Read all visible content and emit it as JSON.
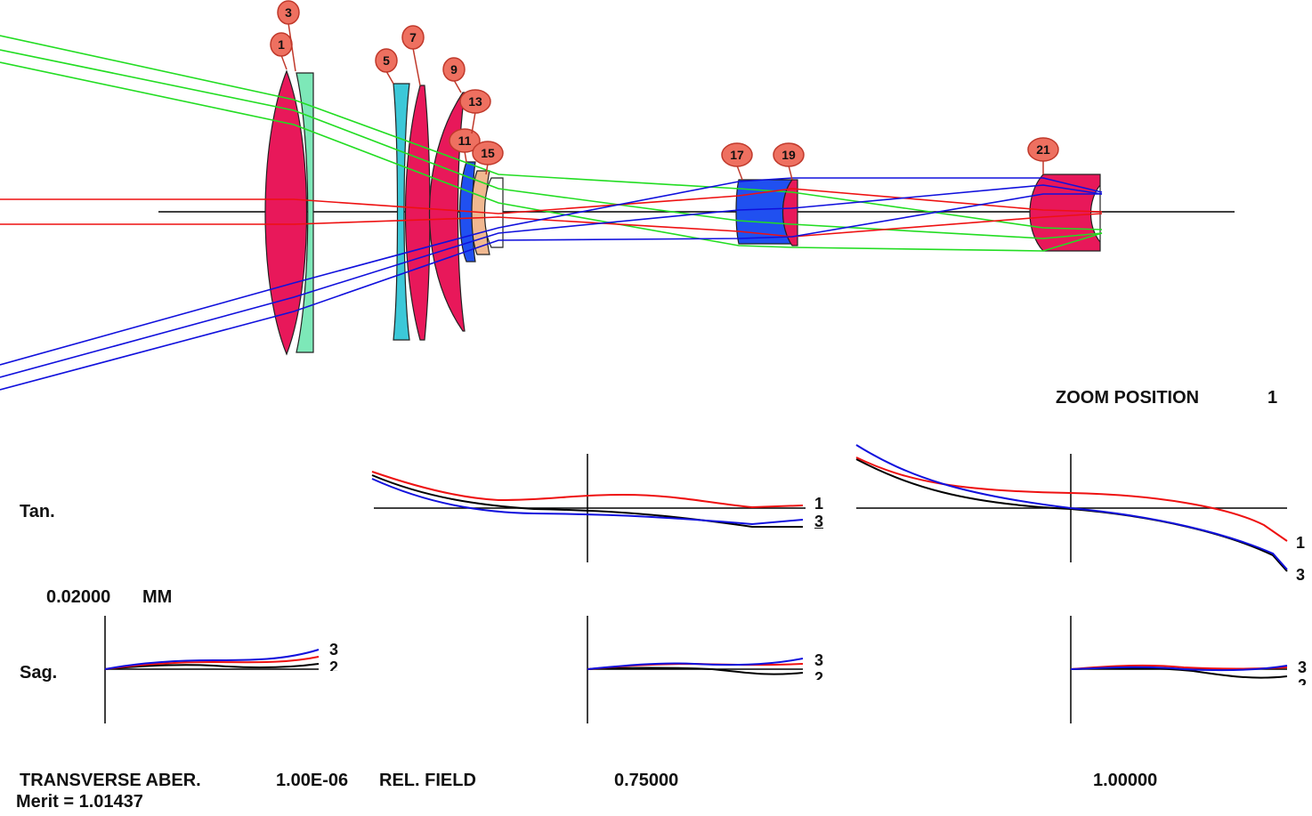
{
  "colors": {
    "lens_red": "#e8185a",
    "lens_mint": "#7de8b8",
    "lens_cyan": "#3cc8d8",
    "lens_blue": "#2050f0",
    "lens_orange": "#f0b890",
    "ray_red": "#ee1111",
    "ray_green": "#22dd22",
    "ray_blue": "#1010dd",
    "tag_fill": "#ee7060",
    "tag_stroke": "#c0392b",
    "black": "#000000"
  },
  "surface_tags": [
    "1",
    "3",
    "5",
    "7",
    "9",
    "11",
    "13",
    "15",
    "17",
    "19",
    "21"
  ],
  "header": {
    "zoom_label": "ZOOM POSITION",
    "zoom_value": "1"
  },
  "aberration": {
    "tan_label": "Tan.",
    "sag_label": "Sag.",
    "scale_value": "0.02000",
    "scale_unit": "MM",
    "field_labels": [
      "1.00E-06",
      "0.75000",
      "1.00000"
    ],
    "curve_labels": [
      "1",
      "3",
      "2"
    ]
  },
  "footer": {
    "title": "TRANSVERSE ABER.",
    "rel_field": "REL. FIELD",
    "merit": "Merit = 1.01437"
  }
}
